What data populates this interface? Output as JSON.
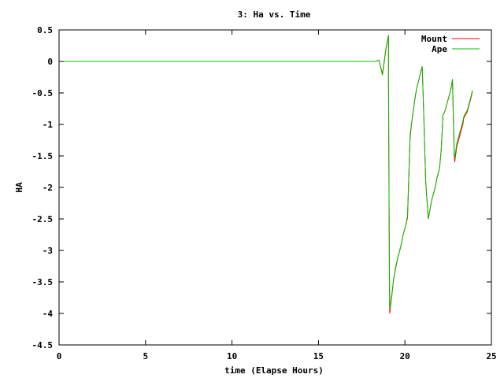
{
  "chart_data": {
    "type": "line",
    "title": "3: Ha vs. Time",
    "xlabel": "time (Elapse Hours)",
    "ylabel": "HA",
    "xlim": [
      0,
      25
    ],
    "ylim": [
      -4.5,
      0.5
    ],
    "xticks": [
      0,
      5,
      10,
      15,
      20,
      25
    ],
    "xtick_labels": [
      "0",
      "5",
      "10",
      "15",
      "20",
      "25"
    ],
    "yticks": [
      0.5,
      0,
      -0.5,
      -1,
      -1.5,
      -2,
      -2.5,
      -3,
      -3.5,
      -4,
      -4.5
    ],
    "ytick_labels": [
      "0.5",
      "0",
      "-0.5",
      "-1",
      "-1.5",
      "-2",
      "-2.5",
      "-3",
      "-3.5",
      "-4",
      "-4.5"
    ],
    "grid": false,
    "legend_position": "top-right",
    "series": [
      {
        "name": "Mount",
        "color": "#ff0000",
        "x": [
          0,
          18.3,
          18.5,
          18.7,
          18.85,
          18.9,
          19.0,
          19.05,
          19.05,
          19.1,
          19.12,
          19.14,
          19.18,
          19.25,
          19.35,
          19.45,
          19.6,
          19.75,
          19.9,
          20.05,
          20.15,
          20.3,
          20.4,
          20.5,
          20.6,
          20.7,
          20.8,
          20.9,
          21.0,
          21.1,
          21.2,
          21.35,
          21.45,
          21.48,
          21.55,
          21.65,
          21.75,
          21.85,
          22.0,
          22.1,
          22.2,
          22.3,
          22.35,
          22.45,
          22.55,
          22.65,
          22.75,
          22.85,
          22.88,
          22.9,
          22.95,
          23.0,
          23.1,
          23.2,
          23.3,
          23.35,
          23.4,
          23.5,
          23.6,
          23.7,
          23.8,
          23.9
        ],
        "y": [
          0,
          0,
          0.02,
          -0.2,
          0.1,
          0.2,
          0.35,
          0.4,
          -0.35,
          -3.3,
          -4.0,
          -3.95,
          -3.85,
          -3.7,
          -3.45,
          -3.3,
          -3.1,
          -2.95,
          -2.75,
          -2.6,
          -2.48,
          -1.2,
          -0.95,
          -0.75,
          -0.55,
          -0.4,
          -0.3,
          -0.18,
          -0.08,
          -0.95,
          -1.9,
          -2.5,
          -2.35,
          -2.3,
          -2.2,
          -2.1,
          -2.0,
          -1.85,
          -1.7,
          -1.4,
          -0.85,
          -0.8,
          -0.75,
          -0.65,
          -0.55,
          -0.45,
          -0.3,
          -1.5,
          -1.6,
          -1.55,
          -1.45,
          -1.35,
          -1.25,
          -1.15,
          -1.05,
          -1.0,
          -0.9,
          -0.85,
          -0.8,
          -0.7,
          -0.6,
          -0.48
        ]
      },
      {
        "name": "Ape",
        "color": "#00c000",
        "x": [
          0,
          18.3,
          18.5,
          18.7,
          18.85,
          18.9,
          19.0,
          19.05,
          19.05,
          19.1,
          19.12,
          19.14,
          19.18,
          19.25,
          19.35,
          19.45,
          19.6,
          19.75,
          19.9,
          20.05,
          20.15,
          20.3,
          20.4,
          20.5,
          20.6,
          20.7,
          20.8,
          20.9,
          21.0,
          21.1,
          21.2,
          21.35,
          21.45,
          21.48,
          21.55,
          21.65,
          21.75,
          21.85,
          22.0,
          22.1,
          22.2,
          22.3,
          22.35,
          22.45,
          22.55,
          22.65,
          22.75,
          22.85,
          22.88,
          22.9,
          22.95,
          23.0,
          23.1,
          23.2,
          23.3,
          23.35,
          23.4,
          23.5,
          23.6,
          23.7,
          23.8,
          23.9
        ],
        "y": [
          0,
          0,
          0.02,
          -0.22,
          0.08,
          0.2,
          0.35,
          0.42,
          -0.3,
          -3.25,
          -3.9,
          -3.92,
          -3.82,
          -3.68,
          -3.45,
          -3.28,
          -3.1,
          -2.95,
          -2.75,
          -2.6,
          -2.45,
          -1.15,
          -0.95,
          -0.75,
          -0.55,
          -0.4,
          -0.3,
          -0.18,
          -0.08,
          -0.95,
          -1.9,
          -2.5,
          -2.35,
          -2.3,
          -2.2,
          -2.1,
          -2.0,
          -1.85,
          -1.7,
          -1.4,
          -0.85,
          -0.8,
          -0.75,
          -0.65,
          -0.55,
          -0.45,
          -0.28,
          -1.42,
          -1.55,
          -1.5,
          -1.4,
          -1.3,
          -1.2,
          -1.1,
          -1.0,
          -0.95,
          -0.88,
          -0.82,
          -0.78,
          -0.68,
          -0.58,
          -0.46
        ]
      }
    ]
  }
}
